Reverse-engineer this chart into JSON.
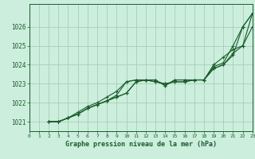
{
  "xlabel": "Graphe pression niveau de la mer (hPa)",
  "bg_color": "#cceedd",
  "grid_color": "#aaccbb",
  "line_color": "#1a5c2a",
  "xlim": [
    0,
    23
  ],
  "ylim": [
    1020.5,
    1027.2
  ],
  "yticks": [
    1021,
    1022,
    1023,
    1024,
    1025,
    1026
  ],
  "xticks": [
    0,
    1,
    2,
    3,
    4,
    5,
    6,
    7,
    8,
    9,
    10,
    11,
    12,
    13,
    14,
    15,
    16,
    17,
    18,
    19,
    20,
    21,
    22,
    23
  ],
  "series": [
    [
      1021.0,
      1021.0,
      1021.2,
      1021.5,
      1021.8,
      1022.0,
      1022.3,
      1022.6,
      1023.1,
      1023.2,
      1023.2,
      1023.2,
      1022.9,
      1023.2,
      1023.2,
      1023.2,
      1023.2,
      1023.8,
      1024.0,
      1024.5,
      1026.0,
      1026.7
    ],
    [
      1021.0,
      1021.0,
      1021.2,
      1021.4,
      1021.7,
      1021.9,
      1022.1,
      1022.4,
      1023.1,
      1023.2,
      1023.2,
      1023.2,
      1022.9,
      1023.2,
      1023.2,
      1023.2,
      1023.2,
      1023.9,
      1024.1,
      1025.0,
      1026.0,
      1026.7
    ],
    [
      1021.0,
      1021.0,
      1021.2,
      1021.4,
      1021.7,
      1021.9,
      1022.1,
      1022.3,
      1022.5,
      1023.1,
      1023.2,
      1023.1,
      1023.0,
      1023.1,
      1023.1,
      1023.2,
      1023.2,
      1024.0,
      1024.4,
      1024.8,
      1025.0,
      1026.7
    ],
    [
      1021.0,
      1021.0,
      1021.2,
      1021.4,
      1021.7,
      1021.9,
      1022.1,
      1022.3,
      1022.5,
      1023.1,
      1023.2,
      1023.1,
      1023.0,
      1023.1,
      1023.1,
      1023.2,
      1023.2,
      1023.8,
      1024.0,
      1024.6,
      1025.0,
      1026.0
    ]
  ]
}
